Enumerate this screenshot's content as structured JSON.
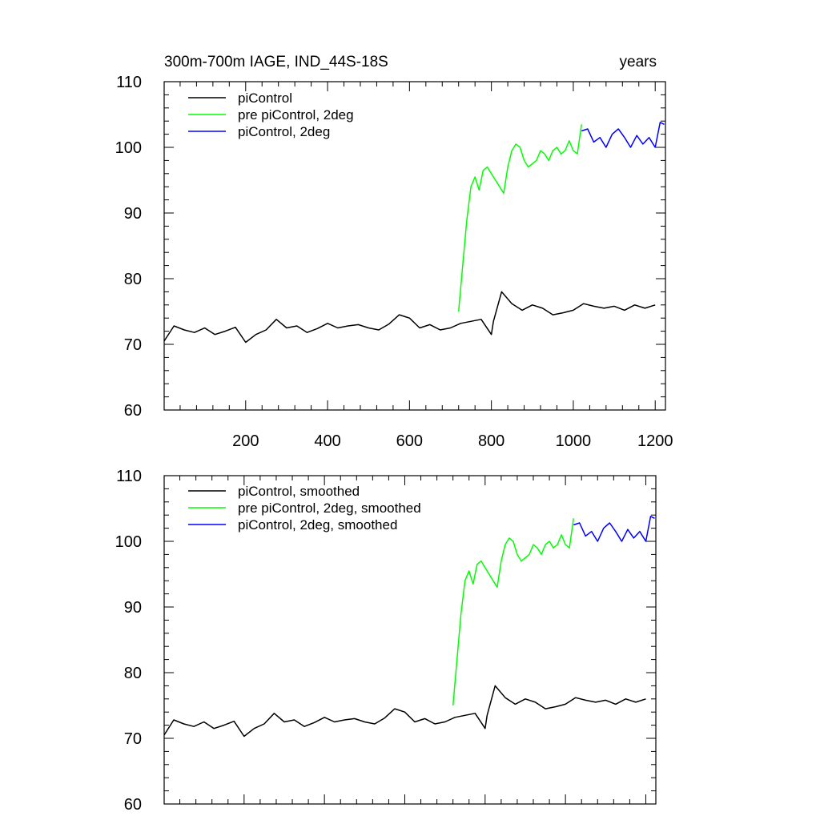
{
  "chart_data": [
    {
      "type": "line",
      "title_left": "300m-700m IAGE, IND_44S-18S",
      "title_right": "years",
      "xlim": [
        1,
        1225
      ],
      "ylim": [
        60,
        110
      ],
      "xticks": [
        200,
        400,
        600,
        800,
        1000,
        1200
      ],
      "xtick_labels": [
        "200",
        "400",
        "600",
        "800",
        "1000",
        "1200"
      ],
      "yticks": [
        60,
        70,
        80,
        90,
        100,
        110
      ],
      "ytick_labels": [
        "60",
        "70",
        "80",
        "90",
        "100",
        "110"
      ],
      "legend_position": "top-left",
      "series": [
        {
          "name": "piControl",
          "color": "#000000",
          "x": [
            1,
            25,
            50,
            75,
            100,
            125,
            150,
            175,
            200,
            225,
            250,
            275,
            300,
            325,
            350,
            375,
            400,
            425,
            450,
            475,
            500,
            525,
            550,
            575,
            600,
            625,
            650,
            675,
            700,
            725,
            750,
            775,
            800,
            805,
            825,
            850,
            875,
            900,
            925,
            950,
            975,
            1000,
            1025,
            1050,
            1075,
            1100,
            1125,
            1150,
            1175,
            1200
          ],
          "y": [
            70.5,
            72.8,
            72.2,
            71.8,
            72.5,
            71.5,
            72.0,
            72.6,
            70.3,
            71.5,
            72.2,
            73.8,
            72.5,
            72.8,
            71.8,
            72.4,
            73.2,
            72.5,
            72.8,
            73.0,
            72.5,
            72.2,
            73.1,
            74.5,
            74.0,
            72.5,
            73.0,
            72.2,
            72.5,
            73.2,
            73.5,
            73.8,
            71.5,
            73.5,
            78.0,
            76.2,
            75.2,
            76.0,
            75.5,
            74.5,
            74.8,
            75.2,
            76.2,
            75.8,
            75.5,
            75.8,
            75.2,
            76.0,
            75.5,
            76.0
          ]
        },
        {
          "name": "pre piControl, 2deg",
          "color": "#00ff00",
          "x": [
            720,
            730,
            740,
            750,
            760,
            770,
            780,
            790,
            800,
            810,
            820,
            830,
            840,
            850,
            860,
            870,
            880,
            890,
            900,
            910,
            920,
            930,
            940,
            950,
            960,
            970,
            980,
            990,
            1000,
            1010,
            1020
          ],
          "y": [
            75.0,
            82.0,
            89.0,
            94.0,
            95.5,
            93.5,
            96.5,
            97.0,
            96.0,
            95.0,
            94.0,
            93.0,
            97.0,
            99.5,
            100.5,
            100.0,
            98.0,
            97.0,
            97.5,
            98.0,
            99.5,
            99.0,
            98.0,
            99.5,
            100.0,
            99.0,
            99.5,
            101.0,
            99.5,
            99.0,
            103.5
          ]
        },
        {
          "name": "piControl, 2deg",
          "color": "#0000ff",
          "x": [
            1020,
            1035,
            1050,
            1065,
            1080,
            1095,
            1110,
            1125,
            1140,
            1155,
            1170,
            1185,
            1200,
            1212,
            1222
          ],
          "y": [
            102.5,
            102.8,
            100.8,
            101.5,
            100.0,
            102.0,
            102.8,
            101.5,
            100.0,
            101.8,
            100.5,
            101.5,
            100.0,
            103.8,
            103.5
          ]
        }
      ]
    },
    {
      "type": "line",
      "xlim": [
        1,
        1225
      ],
      "ylim": [
        60,
        110
      ],
      "xticks": [
        200,
        400,
        600,
        800,
        1000,
        1200
      ],
      "yticks": [
        60,
        70,
        80,
        90,
        100,
        110
      ],
      "ytick_labels": [
        "60",
        "70",
        "80",
        "90",
        "100",
        "110"
      ],
      "legend_position": "top-left",
      "series": [
        {
          "name": "piControl, smoothed",
          "color": "#000000",
          "x": [
            1,
            25,
            50,
            75,
            100,
            125,
            150,
            175,
            200,
            225,
            250,
            275,
            300,
            325,
            350,
            375,
            400,
            425,
            450,
            475,
            500,
            525,
            550,
            575,
            600,
            625,
            650,
            675,
            700,
            725,
            750,
            775,
            800,
            805,
            825,
            850,
            875,
            900,
            925,
            950,
            975,
            1000,
            1025,
            1050,
            1075,
            1100,
            1125,
            1150,
            1175,
            1200
          ],
          "y": [
            70.5,
            72.8,
            72.2,
            71.8,
            72.5,
            71.5,
            72.0,
            72.6,
            70.3,
            71.5,
            72.2,
            73.8,
            72.5,
            72.8,
            71.8,
            72.4,
            73.2,
            72.5,
            72.8,
            73.0,
            72.5,
            72.2,
            73.1,
            74.5,
            74.0,
            72.5,
            73.0,
            72.2,
            72.5,
            73.2,
            73.5,
            73.8,
            71.5,
            73.5,
            78.0,
            76.2,
            75.2,
            76.0,
            75.5,
            74.5,
            74.8,
            75.2,
            76.2,
            75.8,
            75.5,
            75.8,
            75.2,
            76.0,
            75.5,
            76.0
          ]
        },
        {
          "name": "pre piControl, 2deg, smoothed",
          "color": "#00ff00",
          "x": [
            720,
            730,
            740,
            750,
            760,
            770,
            780,
            790,
            800,
            810,
            820,
            830,
            840,
            850,
            860,
            870,
            880,
            890,
            900,
            910,
            920,
            930,
            940,
            950,
            960,
            970,
            980,
            990,
            1000,
            1010,
            1020
          ],
          "y": [
            75.0,
            82.0,
            89.0,
            94.0,
            95.5,
            93.5,
            96.5,
            97.0,
            96.0,
            95.0,
            94.0,
            93.0,
            97.0,
            99.5,
            100.5,
            100.0,
            98.0,
            97.0,
            97.5,
            98.0,
            99.5,
            99.0,
            98.0,
            99.5,
            100.0,
            99.0,
            99.5,
            101.0,
            99.5,
            99.0,
            103.5
          ]
        },
        {
          "name": "piControl, 2deg, smoothed",
          "color": "#0000ff",
          "x": [
            1020,
            1035,
            1050,
            1065,
            1080,
            1095,
            1110,
            1125,
            1140,
            1155,
            1170,
            1185,
            1200,
            1212,
            1222
          ],
          "y": [
            102.5,
            102.8,
            100.8,
            101.5,
            100.0,
            102.0,
            102.8,
            101.5,
            100.0,
            101.8,
            100.5,
            101.5,
            100.0,
            103.8,
            103.5
          ]
        }
      ]
    }
  ]
}
